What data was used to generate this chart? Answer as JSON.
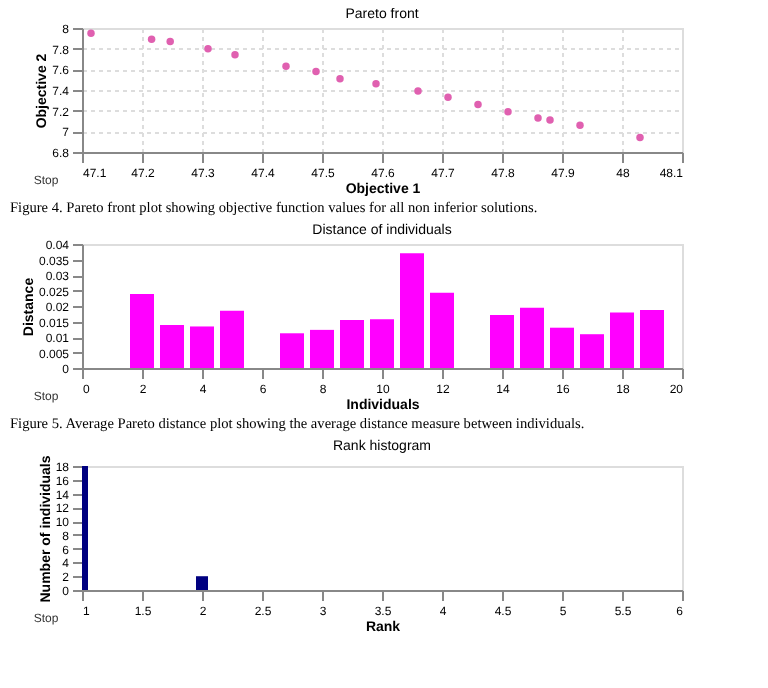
{
  "chart_data": [
    {
      "type": "scatter",
      "title": "Pareto front",
      "xlabel": "Objective 1",
      "ylabel": "Objective 2",
      "marker": "circle",
      "grid": true,
      "series": [
        {
          "color": "#e060b0",
          "x": [
            47.115,
            47.216,
            47.247,
            47.31,
            47.355,
            47.44,
            47.49,
            47.53,
            47.59,
            47.66,
            47.71,
            47.76,
            47.81,
            47.86,
            47.88,
            47.93,
            48.03
          ],
          "values": [
            7.95,
            7.89,
            7.87,
            7.8,
            7.74,
            7.63,
            7.58,
            7.51,
            7.46,
            7.39,
            7.33,
            7.26,
            7.19,
            7.13,
            7.11,
            7.06,
            6.94
          ]
        }
      ],
      "xlim": [
        47.1,
        48.1
      ],
      "xticks": [
        47.1,
        47.2,
        47.3,
        47.4,
        47.5,
        47.6,
        47.7,
        47.8,
        47.9,
        48,
        48.1
      ],
      "ylim": [
        6.8,
        8
      ],
      "yticks": [
        6.8,
        7,
        7.2,
        7.4,
        7.6,
        7.8,
        8
      ],
      "annotations": [
        "Stop",
        "Figure 4. Pareto front plot showing objective function values for all non inferior solutions."
      ]
    },
    {
      "type": "bar",
      "title": "Distance of individuals",
      "xlabel": "Individuals",
      "ylabel": "Distance",
      "series": [
        {
          "color": "#ff00ff",
          "x": [
            2,
            3,
            4,
            5,
            6,
            7,
            8,
            9,
            10,
            11,
            12,
            13,
            14,
            15,
            16,
            17,
            18,
            19
          ],
          "values": [
            0.0239,
            0.0139,
            0.0134,
            0.0185,
            null,
            0.0112,
            0.0123,
            0.0155,
            0.0157,
            0.037,
            0.0243,
            null,
            0.0171,
            0.0194,
            0.013,
            0.0109,
            0.0179,
            0.0187
          ]
        }
      ],
      "xlim": [
        0,
        20
      ],
      "xticks": [
        0,
        2,
        4,
        6,
        8,
        10,
        12,
        14,
        16,
        18,
        20
      ],
      "ylim": [
        0,
        0.04
      ],
      "yticks": [
        0,
        0.005,
        0.01,
        0.015,
        0.02,
        0.025,
        0.03,
        0.035,
        0.04
      ],
      "annotations": [
        "Stop",
        "Figure 5. Average Pareto distance plot showing the average distance measure between individuals."
      ]
    },
    {
      "type": "bar",
      "title": "Rank histogram",
      "xlabel": "Rank",
      "ylabel": "Number of individuals",
      "series": [
        {
          "color": "#000080",
          "x": [
            1,
            2
          ],
          "values": [
            18,
            2
          ]
        }
      ],
      "xlim": [
        1,
        6
      ],
      "xticks": [
        1,
        1.5,
        2,
        2.5,
        3,
        3.5,
        4,
        4.5,
        5,
        5.5,
        6
      ],
      "ylim": [
        0,
        18
      ],
      "yticks": [
        0,
        2,
        4,
        6,
        8,
        10,
        12,
        14,
        16,
        18
      ],
      "annotations": [
        "Stop"
      ]
    }
  ]
}
